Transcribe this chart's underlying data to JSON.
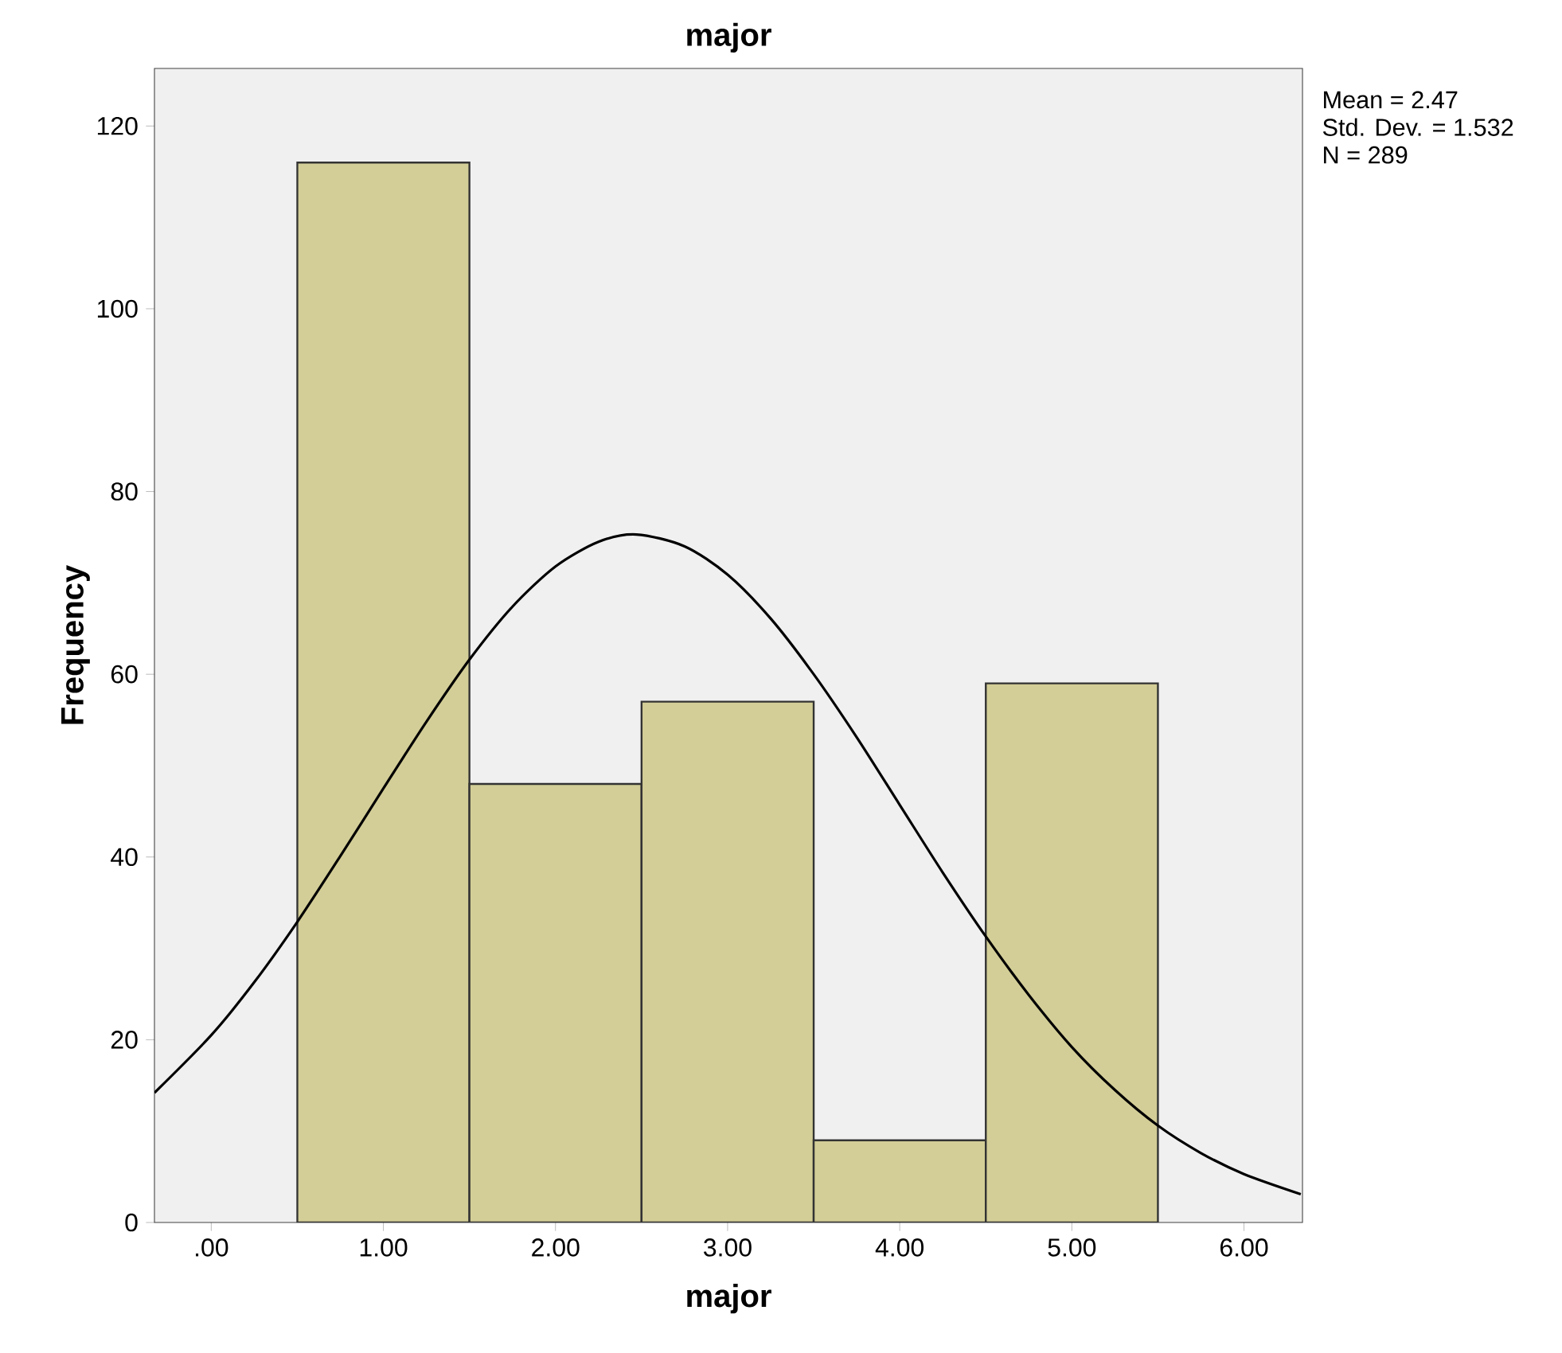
{
  "chart_data": {
    "type": "histogram",
    "title": "major",
    "xlabel": "major",
    "ylabel": "Frequency",
    "bins": [
      0.5,
      1.5,
      2.5,
      3.5,
      4.5,
      5.5
    ],
    "values": [
      116,
      48,
      57,
      9,
      59
    ],
    "color": "#d3ce97",
    "series": [
      {
        "type": "line",
        "color": "#000000",
        "x": [
          -0.33,
          0,
          0.25,
          0.5,
          0.75,
          1,
          1.25,
          1.5,
          1.75,
          2,
          2.25,
          2.47,
          2.75,
          3,
          3.25,
          3.5,
          3.75,
          4,
          4.25,
          4.5,
          4.75,
          5,
          5.25,
          5.5,
          5.75,
          6,
          6.33
        ],
        "values": [
          14.2,
          20.5,
          26.3,
          32.9,
          40.1,
          47.5,
          54.8,
          61.6,
          67.4,
          71.8,
          74.5,
          75.3,
          74.0,
          70.9,
          66.1,
          60.0,
          53.1,
          45.7,
          38.3,
          31.3,
          24.9,
          19.2,
          14.5,
          10.6,
          7.6,
          5.3,
          3.1
        ]
      }
    ],
    "xlim": [
      -0.33,
      6.34
    ],
    "ylim": [
      0,
      126.3
    ],
    "xticks": [
      {
        "value": 0,
        "label": ".00"
      },
      {
        "value": 1,
        "label": "1.00"
      },
      {
        "value": 2,
        "label": "2.00"
      },
      {
        "value": 3,
        "label": "3.00"
      },
      {
        "value": 4,
        "label": "4.00"
      },
      {
        "value": 5,
        "label": "5.00"
      },
      {
        "value": 6,
        "label": "6.00"
      }
    ],
    "yticks": [
      0,
      20,
      40,
      60,
      80,
      100,
      120
    ],
    "marker": "none",
    "line_style": "solid",
    "annotations": [
      "Mean = 2.47",
      "Std. Dev. = 1.532",
      "N = 289"
    ]
  }
}
